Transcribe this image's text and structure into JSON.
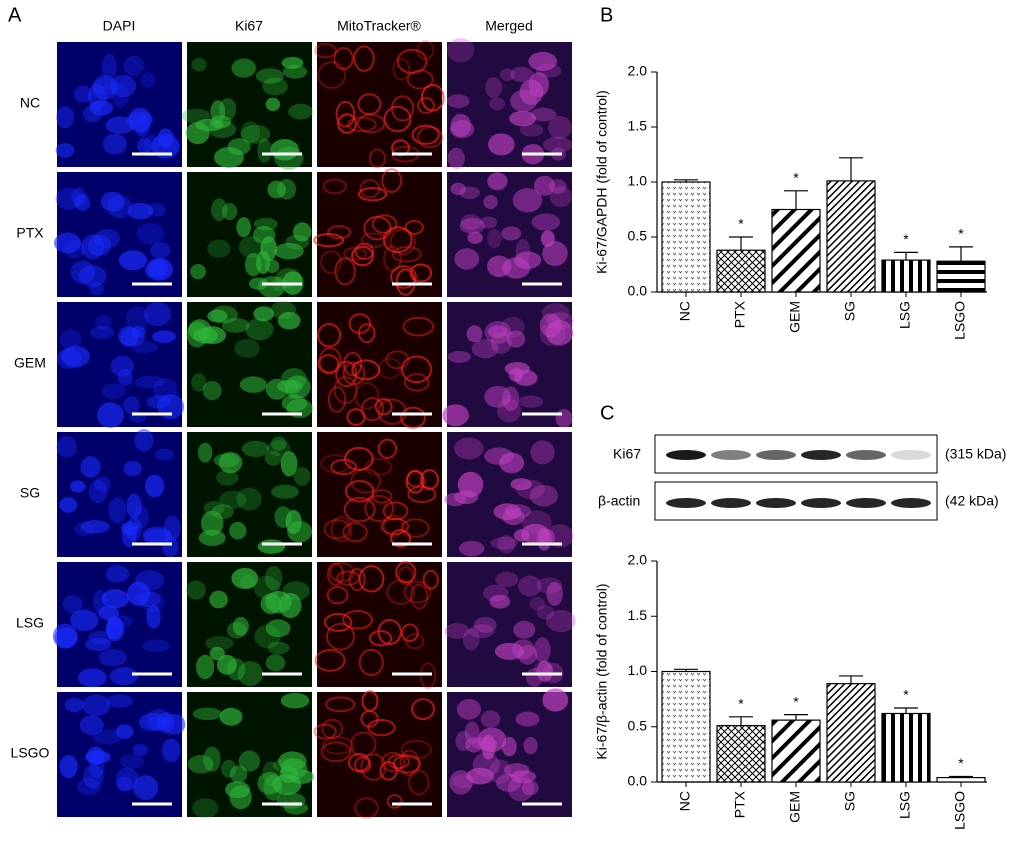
{
  "panels": {
    "a": "A",
    "b": "B",
    "c": "C"
  },
  "microscopy": {
    "columns": [
      "DAPI",
      "Ki67",
      "MitoTracker®",
      "Merged"
    ],
    "rows": [
      "NC",
      "PTX",
      "GEM",
      "SG",
      "LSG",
      "LSGO"
    ]
  },
  "blot": {
    "bands": [
      "Ki67",
      "β-actin"
    ],
    "sizes": [
      "(315 kDa)",
      "(42 kDa)"
    ]
  },
  "chart_data": [
    {
      "type": "bar",
      "y_label": "Ki-67/GAPDH (fold of control)",
      "categories": [
        "NC",
        "PTX",
        "GEM",
        "SG",
        "LSG",
        "LSGO"
      ],
      "values": [
        1.0,
        0.38,
        0.75,
        1.01,
        0.29,
        0.28
      ],
      "errors": [
        0.02,
        0.12,
        0.17,
        0.21,
        0.07,
        0.13
      ],
      "significance": [
        null,
        "*",
        "*",
        null,
        "*",
        "*"
      ],
      "patterns": [
        "dots",
        "cross",
        "diag",
        "diagfine",
        "vert",
        "horiz"
      ],
      "ylim": [
        0,
        2
      ],
      "yticks": [
        {
          "value": 0,
          "label": "0.0"
        },
        {
          "value": 0.5,
          "label": "0.5"
        },
        {
          "value": 1,
          "label": "1.0"
        },
        {
          "value": 1.5,
          "label": "1.5"
        },
        {
          "value": 2,
          "label": "2.0"
        }
      ]
    },
    {
      "type": "bar",
      "y_label": "Ki-67/β-actin (fold of control)",
      "categories": [
        "NC",
        "PTX",
        "GEM",
        "SG",
        "LSG",
        "LSGO"
      ],
      "values": [
        1.0,
        0.51,
        0.56,
        0.89,
        0.62,
        0.04
      ],
      "errors": [
        0.02,
        0.08,
        0.05,
        0.07,
        0.05,
        0.01
      ],
      "significance": [
        null,
        "*",
        "*",
        null,
        "*",
        "*"
      ],
      "patterns": [
        "dots",
        "cross",
        "diag",
        "diagfine",
        "vert",
        "horiz"
      ],
      "ylim": [
        0,
        2
      ],
      "yticks": [
        {
          "value": 0,
          "label": "0.0"
        },
        {
          "value": 0.5,
          "label": "0.5"
        },
        {
          "value": 1,
          "label": "1.0"
        },
        {
          "value": 1.5,
          "label": "1.5"
        },
        {
          "value": 2,
          "label": "2.0"
        }
      ]
    }
  ]
}
